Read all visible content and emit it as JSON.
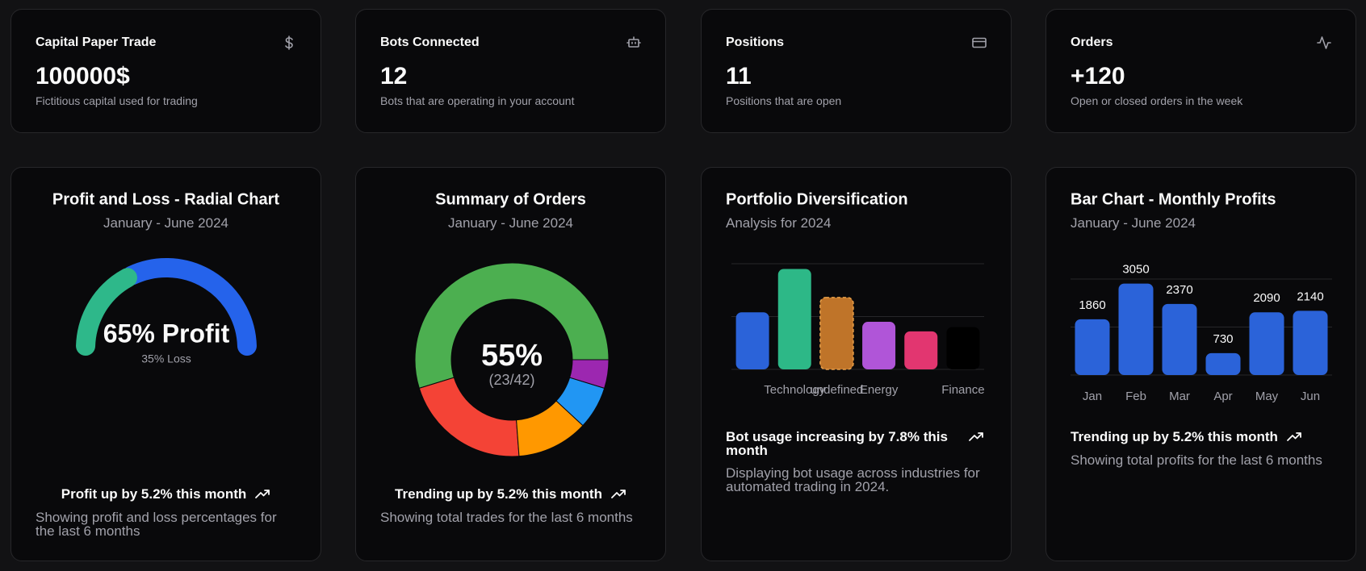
{
  "stats": [
    {
      "title": "Capital Paper Trade",
      "value": "100000$",
      "description": "Fictitious capital used for trading"
    },
    {
      "title": "Bots Connected",
      "value": "12",
      "description": "Bots that are operating in your account"
    },
    {
      "title": "Positions",
      "value": "11",
      "description": "Positions that are open"
    },
    {
      "title": "Orders",
      "value": "+120",
      "description": "Open or closed orders in the week"
    }
  ],
  "chart_data": [
    {
      "type": "radial",
      "title": "Profit and Loss - Radial Chart",
      "subtitle": "January - June 2024",
      "values": [
        65,
        35
      ],
      "value_labels": [
        "65% Profit",
        "35% Loss"
      ],
      "colors": [
        "#2563eb",
        "#2eb88a"
      ],
      "footer": "Profit up by 5.2% this month",
      "description": "Showing profit and loss percentages for the last 6 months"
    },
    {
      "type": "donut",
      "title": "Summary of Orders",
      "subtitle": "January - June 2024",
      "values": [
        23,
        9,
        5,
        3,
        2
      ],
      "colors": [
        "#4caf50",
        "#f44336",
        "#ff9800",
        "#2196f3",
        "#9c27b0"
      ],
      "center_label": "55%",
      "center_sublabel": "(23/42)",
      "footer": "Trending up by 5.2% this month",
      "description": "Showing total trades for the last 6 months"
    },
    {
      "type": "bar",
      "title": "Portfolio Diversification",
      "subtitle": "Analysis for 2024",
      "categories": [
        null,
        "Technology",
        "undefined",
        "Energy",
        null,
        "Finance"
      ],
      "values": [
        108,
        190,
        136,
        90,
        72,
        80
      ],
      "colors": [
        "#2b63d9",
        "#2db887",
        "#bf7429",
        "#b055d8",
        "#e23670",
        "#000000"
      ],
      "highlight": 2,
      "ylim": [
        0,
        200
      ],
      "yticks": [
        0,
        100,
        200
      ],
      "grid": true,
      "tick_labels": false,
      "footer": "Bot usage increasing by 7.8% this month",
      "description": "Displaying bot usage across industries for automated trading in 2024."
    },
    {
      "type": "bar",
      "title": "Bar Chart - Monthly Profits",
      "subtitle": "January - June 2024",
      "categories": [
        "Jan",
        "Feb",
        "Mar",
        "Apr",
        "May",
        "Jun"
      ],
      "values": [
        1860,
        3050,
        2370,
        730,
        2090,
        2140
      ],
      "color": "#2b63d9",
      "show_values": true,
      "ylim": [
        0,
        3200
      ],
      "yticks": [
        0,
        1600,
        3200
      ],
      "grid": true,
      "tick_labels": false,
      "footer": "Trending up by 5.2% this month",
      "description": "Showing total profits for the last 6 months"
    }
  ]
}
